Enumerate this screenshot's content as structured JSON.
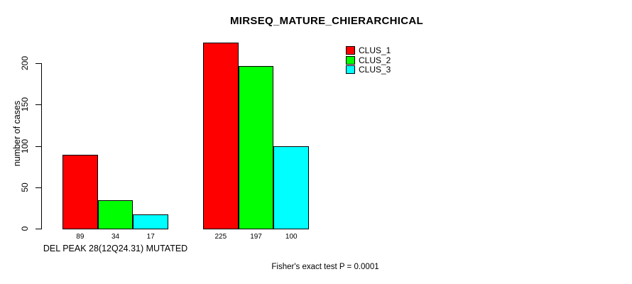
{
  "chart_data": {
    "type": "bar",
    "title": "MIRSEQ_MATURE_CHIERARCHICAL",
    "ylabel": "number of cases",
    "ylim": [
      0,
      225
    ],
    "yticks": [
      0,
      50,
      100,
      150,
      200
    ],
    "grid": false,
    "legend_position": "top-right",
    "series": [
      {
        "name": "CLUS_1",
        "color": "#ff0000"
      },
      {
        "name": "CLUS_2",
        "color": "#00ff00"
      },
      {
        "name": "CLUS_3",
        "color": "#00ffff"
      }
    ],
    "groups": [
      {
        "label": "DEL PEAK 28(12Q24.31) MUTATED",
        "values": [
          89,
          34,
          17
        ]
      },
      {
        "label": "",
        "values": [
          225,
          197,
          100
        ]
      }
    ],
    "bar_value_labels": [
      89,
      34,
      17,
      225,
      197,
      100
    ],
    "annotation": "Fisher's exact test P = 0.0001",
    "text_color": "#000000",
    "background_color": "#ffffff"
  }
}
